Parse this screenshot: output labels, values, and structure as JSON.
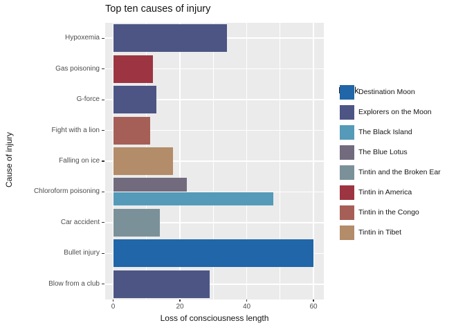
{
  "title": "Top ten causes of injury",
  "axes": {
    "x": {
      "label": "Loss of consciousness length",
      "tick_labels": [
        "0",
        "20",
        "40",
        "60"
      ],
      "tick_values": [
        0,
        20,
        40,
        60
      ],
      "minor_tick_values": [
        10,
        30,
        50
      ]
    },
    "y": {
      "label": "Cause of injury"
    }
  },
  "legend": {
    "title": "Book",
    "entries": [
      {
        "label": "Destination Moon",
        "color": "#2066a8"
      },
      {
        "label": "Explorers on the Moon",
        "color": "#4d5585"
      },
      {
        "label": "The Black Island",
        "color": "#559ab8"
      },
      {
        "label": "The Blue Lotus",
        "color": "#726b7e"
      },
      {
        "label": "Tintin and the Broken Ear",
        "color": "#7b9199"
      },
      {
        "label": "Tintin in America",
        "color": "#9c3541"
      },
      {
        "label": "Tintin in the Congo",
        "color": "#a65f56"
      },
      {
        "label": "Tintin in Tibet",
        "color": "#b38c69"
      }
    ]
  },
  "chart_data": {
    "type": "bar",
    "orientation": "horizontal",
    "title": "Top ten causes of injury",
    "xlabel": "Loss of consciousness length",
    "ylabel": "Cause of injury",
    "xlim": [
      0,
      63
    ],
    "grid": true,
    "legend_position": "right",
    "legend_title": "Book",
    "categories": [
      "Hypoxemia",
      "Gas poisoning",
      "G-force",
      "Fight with a lion",
      "Falling on ice",
      "Chloroform poisoning",
      "Car accident",
      "Bullet injury",
      "Blow from a club"
    ],
    "rows": [
      {
        "category": "Hypoxemia",
        "bars": [
          {
            "book": "Explorers on the Moon",
            "value": 34
          }
        ]
      },
      {
        "category": "Gas poisoning",
        "bars": [
          {
            "book": "Tintin in America",
            "value": 12
          }
        ]
      },
      {
        "category": "G-force",
        "bars": [
          {
            "book": "Explorers on the Moon",
            "value": 13
          }
        ]
      },
      {
        "category": "Fight with a lion",
        "bars": [
          {
            "book": "Tintin in the Congo",
            "value": 11
          }
        ]
      },
      {
        "category": "Falling on ice",
        "bars": [
          {
            "book": "Tintin in Tibet",
            "value": 18
          }
        ]
      },
      {
        "category": "Chloroform poisoning",
        "bars": [
          {
            "book": "The Blue Lotus",
            "value": 22
          },
          {
            "book": "The Black Island",
            "value": 48
          }
        ]
      },
      {
        "category": "Car accident",
        "bars": [
          {
            "book": "Tintin and the Broken Ear",
            "value": 14
          }
        ]
      },
      {
        "category": "Bullet injury",
        "bars": [
          {
            "book": "Destination Moon",
            "value": 60
          }
        ]
      },
      {
        "category": "Blow from a club",
        "bars": [
          {
            "book": "Explorers on the Moon",
            "value": 29
          }
        ]
      }
    ]
  },
  "colors": {
    "panel_background": "#ebebeb",
    "gridline": "#ffffff",
    "tick_text": "#4d4d4d",
    "axis_text": "#131313",
    "tick_mark": "#333333"
  }
}
